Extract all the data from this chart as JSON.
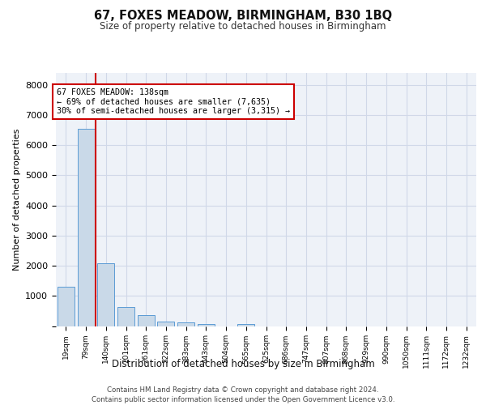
{
  "title1": "67, FOXES MEADOW, BIRMINGHAM, B30 1BQ",
  "title2": "Size of property relative to detached houses in Birmingham",
  "xlabel": "Distribution of detached houses by size in Birmingham",
  "ylabel": "Number of detached properties",
  "categories": [
    "19sqm",
    "79sqm",
    "140sqm",
    "201sqm",
    "261sqm",
    "322sqm",
    "383sqm",
    "443sqm",
    "504sqm",
    "565sqm",
    "625sqm",
    "686sqm",
    "747sqm",
    "807sqm",
    "868sqm",
    "929sqm",
    "990sqm",
    "1050sqm",
    "1111sqm",
    "1172sqm",
    "1232sqm"
  ],
  "values": [
    1300,
    6550,
    2080,
    620,
    350,
    140,
    120,
    80,
    0,
    80,
    0,
    0,
    0,
    0,
    0,
    0,
    0,
    0,
    0,
    0,
    0
  ],
  "bar_color": "#c9d9e8",
  "bar_edgecolor": "#5b9bd5",
  "grid_color": "#d0d8e8",
  "background_color": "#eef2f8",
  "vline_color": "#cc0000",
  "vline_x": 1.5,
  "annotation_text": "67 FOXES MEADOW: 138sqm\n← 69% of detached houses are smaller (7,635)\n30% of semi-detached houses are larger (3,315) →",
  "annotation_box_color": "#cc0000",
  "footer1": "Contains HM Land Registry data © Crown copyright and database right 2024.",
  "footer2": "Contains public sector information licensed under the Open Government Licence v3.0.",
  "ylim": [
    0,
    8400
  ],
  "yticks": [
    0,
    1000,
    2000,
    3000,
    4000,
    5000,
    6000,
    7000,
    8000
  ]
}
